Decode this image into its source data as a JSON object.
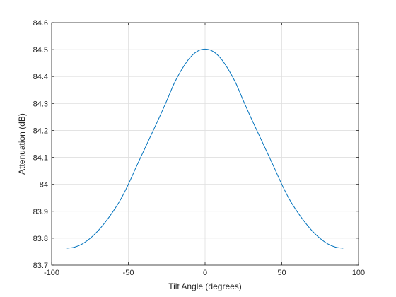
{
  "chart_data": {
    "type": "line",
    "title": "",
    "xlabel": "Tilt Angle (degrees)",
    "ylabel": "Attenuation (dB)",
    "xlim": [
      -100,
      100
    ],
    "ylim": [
      83.7,
      84.6
    ],
    "x_ticks": [
      "-100",
      "-50",
      "0",
      "50",
      "100"
    ],
    "y_ticks": [
      "83.7",
      "83.8",
      "83.9",
      "84",
      "84.1",
      "84.2",
      "84.3",
      "84.4",
      "84.5",
      "84.6"
    ],
    "grid": true,
    "legend": "none",
    "line_color": "#0072BD",
    "series": [
      {
        "x": [
          -90,
          -85,
          -80,
          -75,
          -70,
          -65,
          -60,
          -55,
          -50,
          -45,
          -40,
          -35,
          -30,
          -25,
          -20,
          -15,
          -10,
          -5,
          0,
          5,
          10,
          15,
          20,
          25,
          30,
          35,
          40,
          45,
          50,
          55,
          60,
          65,
          70,
          75,
          80,
          85,
          90
        ],
        "values": [
          83.763,
          83.767,
          83.779,
          83.799,
          83.826,
          83.86,
          83.899,
          83.944,
          84.0,
          84.063,
          84.124,
          84.185,
          84.246,
          84.31,
          84.376,
          84.428,
          84.469,
          84.494,
          84.502,
          84.494,
          84.469,
          84.428,
          84.376,
          84.31,
          84.246,
          84.185,
          84.124,
          84.063,
          84.0,
          83.944,
          83.899,
          83.86,
          83.826,
          83.799,
          83.779,
          83.767,
          83.763
        ]
      }
    ]
  }
}
